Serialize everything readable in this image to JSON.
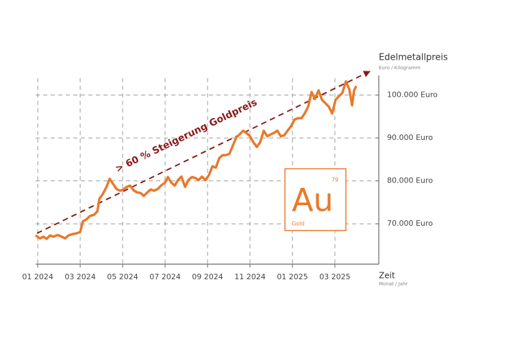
{
  "chart_data": {
    "type": "line",
    "annotation": "> 60 % Steigerung Goldpreis",
    "y_axis_label": "Edelmetallpreis",
    "y_axis_unit": "Euro / Kilogramm",
    "x_axis_label": "Zeit",
    "x_axis_unit": "Monat / Jahr",
    "element": {
      "symbol": "Au",
      "number": "79",
      "name": "Gold"
    },
    "xlim": [
      -0.1,
      16.1
    ],
    "xticks": [
      {
        "value": 0,
        "label": "01 2024"
      },
      {
        "value": 2,
        "label": "03 2024"
      },
      {
        "value": 4,
        "label": "05 2024"
      },
      {
        "value": 6,
        "label": "07 2024"
      },
      {
        "value": 8,
        "label": "09 2024"
      },
      {
        "value": 10,
        "label": "11 2024"
      },
      {
        "value": 12,
        "label": "01 2025"
      },
      {
        "value": 14,
        "label": "03 2025"
      }
    ],
    "ylim": [
      60600,
      106000
    ],
    "yticks": [
      {
        "value": 70000,
        "label": "70.000 Euro"
      },
      {
        "value": 80000,
        "label": "80.000 Euro"
      },
      {
        "value": 90000,
        "label": "90.000 Euro"
      },
      {
        "value": 100000,
        "label": "100.000 Euro"
      }
    ],
    "grid": true,
    "series": [
      {
        "color": "#e8792b",
        "x": [
          -0.1,
          0.1,
          0.26,
          0.42,
          0.58,
          0.74,
          0.94,
          1.13,
          1.29,
          1.45,
          1.65,
          1.84,
          2,
          2.13,
          2.29,
          2.45,
          2.65,
          2.81,
          2.9,
          3.06,
          3.23,
          3.39,
          3.55,
          3.71,
          3.87,
          4.03,
          4.19,
          4.35,
          4.52,
          4.68,
          4.84,
          5,
          5.16,
          5.32,
          5.48,
          5.65,
          5.81,
          6,
          6.13,
          6.29,
          6.45,
          6.61,
          6.77,
          6.94,
          7.1,
          7.26,
          7.42,
          7.58,
          7.74,
          7.9,
          8.06,
          8.23,
          8.39,
          8.55,
          8.71,
          8.87,
          9.03,
          9.19,
          9.35,
          9.52,
          9.68,
          9.84,
          10,
          10.16,
          10.32,
          10.48,
          10.65,
          10.81,
          10.97,
          11.13,
          11.29,
          11.45,
          11.61,
          11.77,
          11.94,
          12.1,
          12.26,
          12.42,
          12.58,
          12.74,
          12.9,
          13.06,
          13.23,
          13.39,
          13.55,
          13.71,
          13.87,
          14.03,
          14.19,
          14.35,
          14.52,
          14.68,
          14.81,
          14.9,
          15
        ],
        "values": [
          67300,
          66600,
          67000,
          66500,
          67300,
          67000,
          67400,
          67000,
          66600,
          67300,
          67600,
          67800,
          68100,
          70600,
          71000,
          71800,
          72100,
          72900,
          75800,
          76900,
          78500,
          80500,
          79300,
          78100,
          77700,
          78000,
          78600,
          78900,
          77800,
          77300,
          77200,
          76500,
          77300,
          78000,
          77700,
          78100,
          78900,
          79600,
          80900,
          79600,
          78900,
          80200,
          81000,
          78600,
          80200,
          80900,
          80700,
          80200,
          81000,
          80200,
          81300,
          83400,
          83100,
          85300,
          86000,
          86000,
          86300,
          88200,
          90100,
          90900,
          91700,
          91100,
          90400,
          89000,
          87900,
          89000,
          91700,
          90400,
          90800,
          91200,
          91700,
          90400,
          90600,
          91700,
          92800,
          94300,
          94600,
          94600,
          95700,
          97300,
          100700,
          99100,
          101100,
          98900,
          98100,
          97300,
          95700,
          98900,
          99700,
          100500,
          103200,
          101300,
          97600,
          101000,
          102100
        ]
      }
    ]
  }
}
